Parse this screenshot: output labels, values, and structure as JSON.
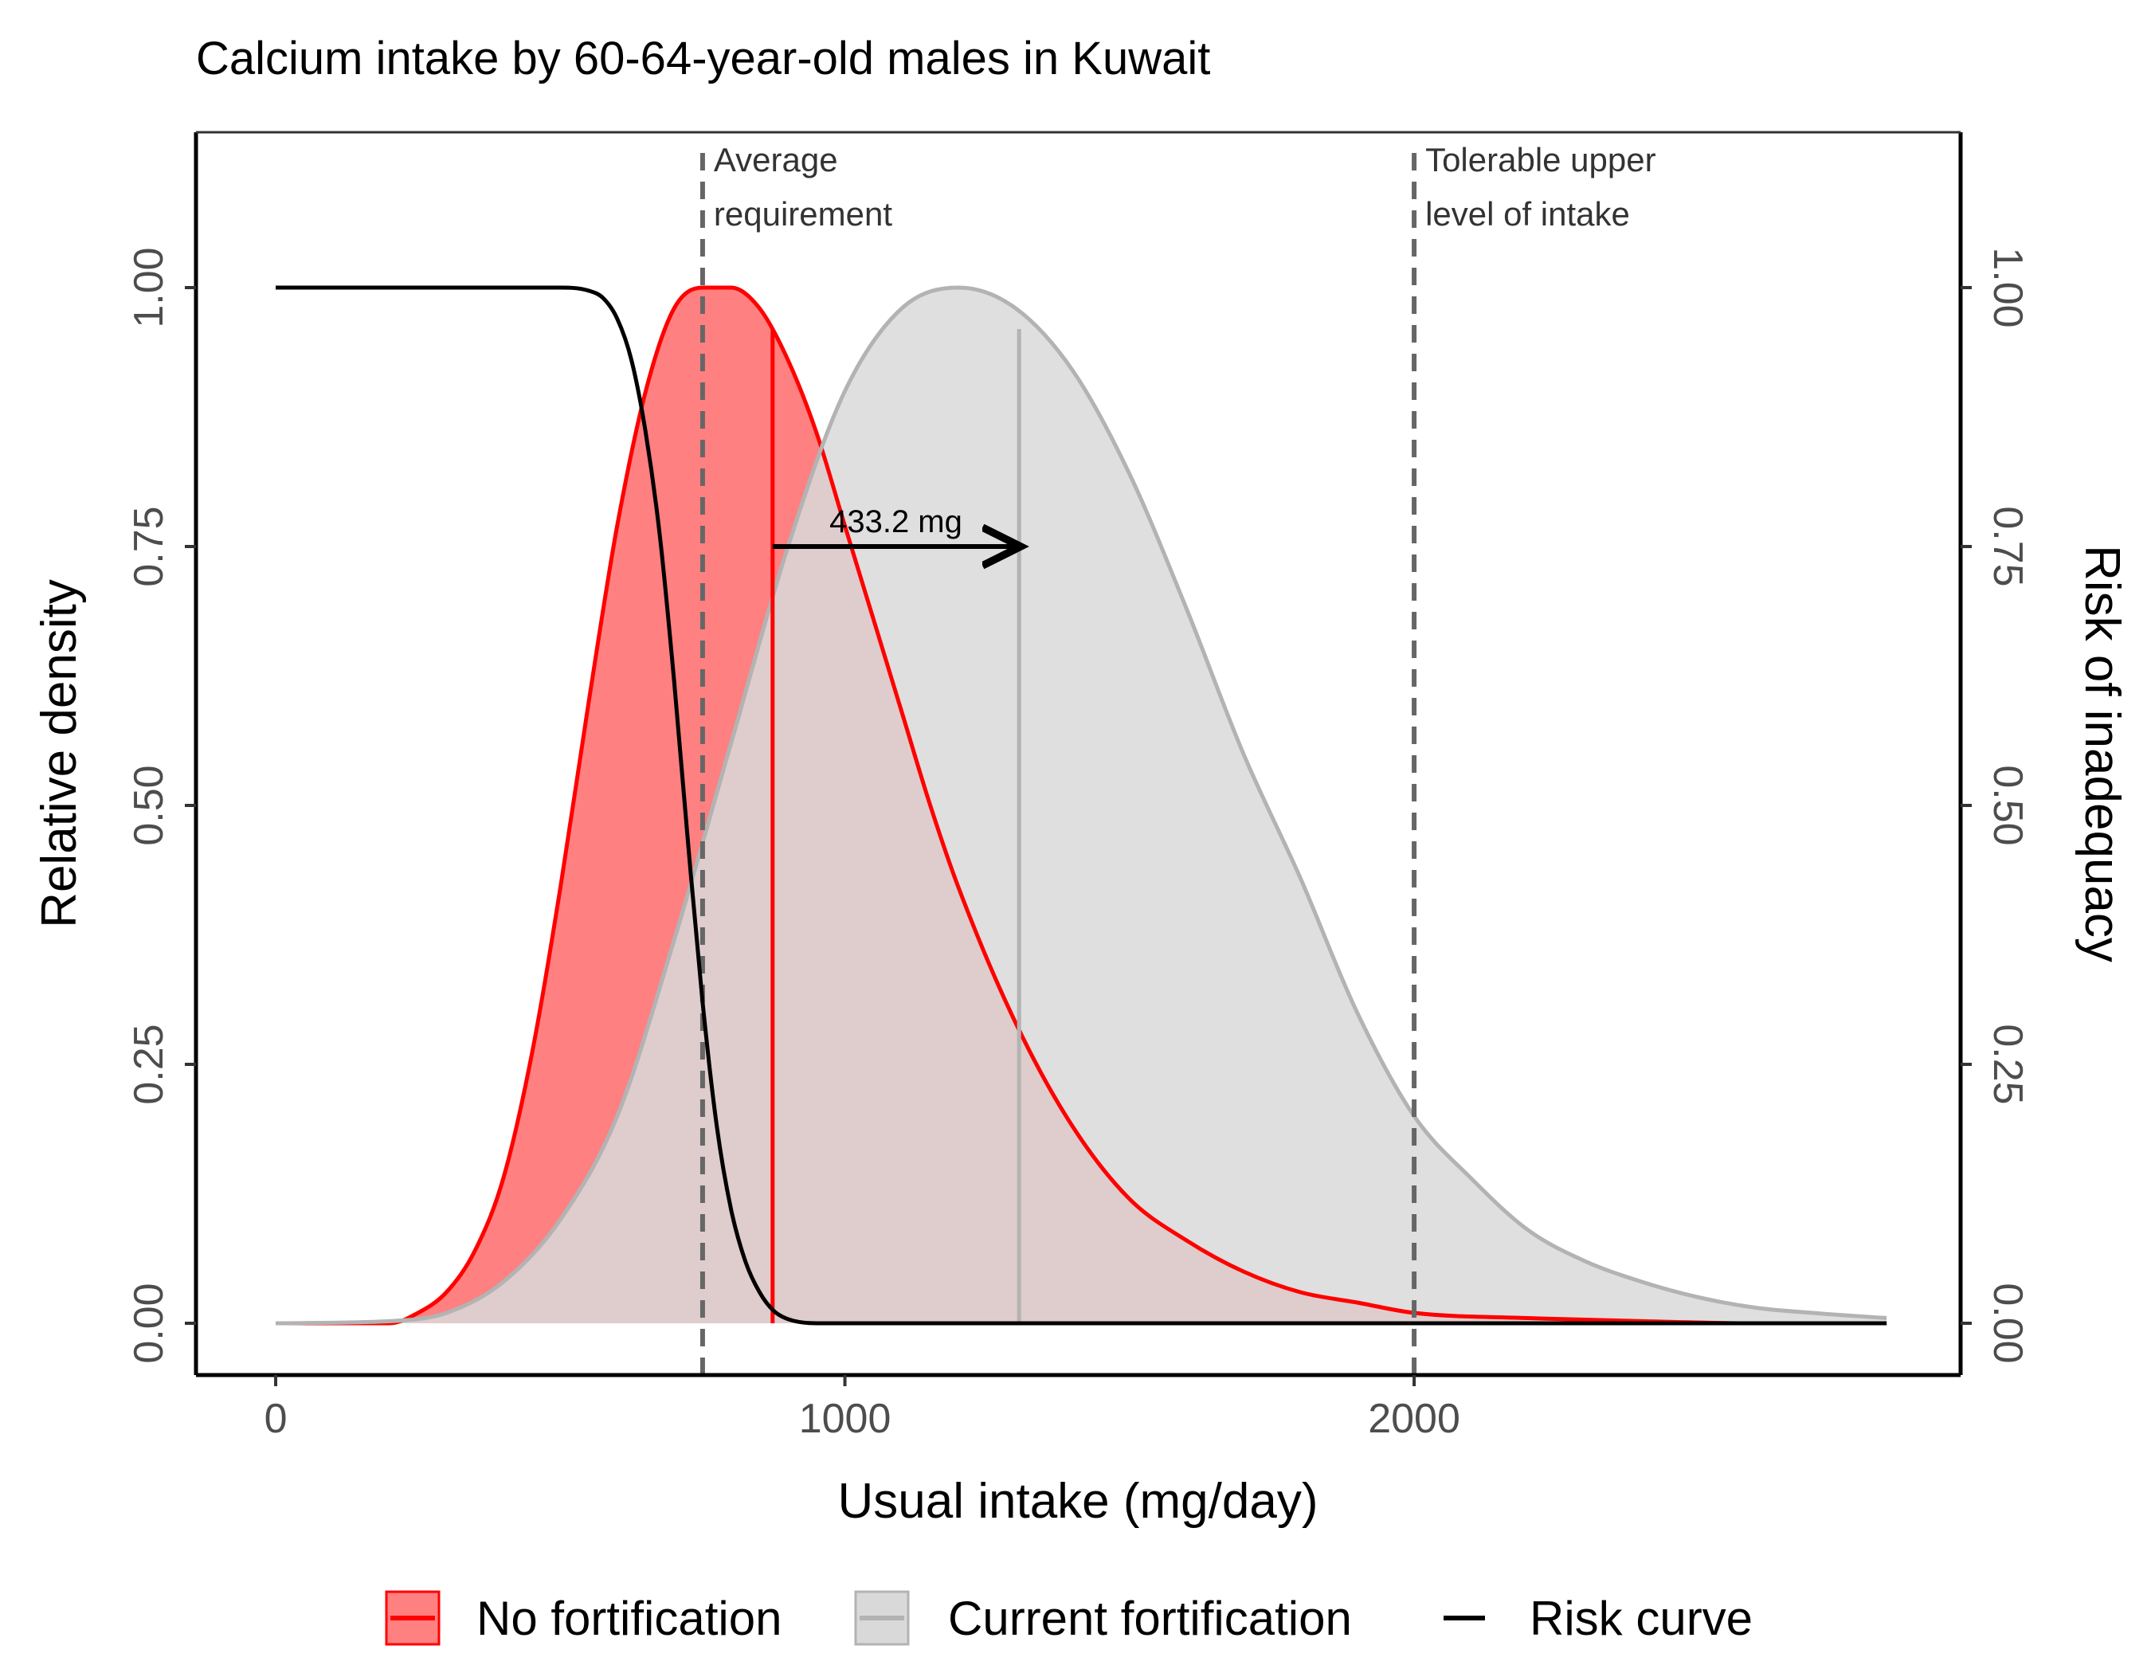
{
  "chart_data": {
    "type": "area",
    "title": "Calcium intake by 60-64-year-old males in Kuwait",
    "xlabel": "Usual intake (mg/day)",
    "ylabel": "Relative density",
    "y2label": "Risk of inadequacy",
    "xlim": [
      -140,
      2960
    ],
    "ylim": [
      -0.05,
      1.15
    ],
    "x_ticks": [
      0,
      1000,
      2000
    ],
    "x_tick_labels": [
      "0",
      "1000",
      "2000"
    ],
    "y_ticks": [
      0,
      0.25,
      0.5,
      0.75,
      1.0
    ],
    "y_tick_labels": [
      "0.00",
      "0.25",
      "0.50",
      "0.75",
      "1.00"
    ],
    "y2_ticks": [
      0,
      0.25,
      0.5,
      0.75,
      1.0
    ],
    "y2_tick_labels": [
      "0.00",
      "0.25",
      "0.50",
      "0.75",
      "1.00"
    ],
    "grid": false,
    "legend_position": "bottom",
    "colors": {
      "no_fortification_line": "#ff0000",
      "no_fortification_fill": "#ff8080",
      "current_fortification_line": "#b3b3b3",
      "current_fortification_fill": "#d9d9d9",
      "risk_curve": "#000000",
      "reference_line": "#666666"
    },
    "series": [
      {
        "name": "No fortification",
        "x": [
          0,
          200,
          250,
          300,
          350,
          400,
          450,
          500,
          550,
          600,
          650,
          700,
          750,
          800,
          850,
          900,
          950,
          1000,
          1050,
          1100,
          1150,
          1200,
          1300,
          1400,
          1500,
          1600,
          1700,
          1800,
          1900,
          2000,
          2200,
          2400,
          2600,
          2830
        ],
        "values": [
          0.0,
          0.0,
          0.01,
          0.03,
          0.07,
          0.14,
          0.26,
          0.42,
          0.6,
          0.77,
          0.9,
          0.98,
          1.0,
          1.0,
          0.98,
          0.93,
          0.86,
          0.77,
          0.68,
          0.59,
          0.5,
          0.42,
          0.29,
          0.19,
          0.12,
          0.08,
          0.05,
          0.03,
          0.02,
          0.01,
          0.005,
          0.002,
          0.0,
          0.0
        ],
        "mean_line_x": 873,
        "mean_line_y": 0.96
      },
      {
        "name": "Current fortification",
        "x": [
          0,
          200,
          300,
          400,
          500,
          600,
          700,
          800,
          900,
          1000,
          1100,
          1200,
          1300,
          1400,
          1500,
          1600,
          1700,
          1800,
          1900,
          2000,
          2100,
          2200,
          2300,
          2400,
          2500,
          2600,
          2700,
          2830
        ],
        "values": [
          0.0,
          0.002,
          0.01,
          0.04,
          0.1,
          0.2,
          0.37,
          0.56,
          0.75,
          0.9,
          0.98,
          1.0,
          0.98,
          0.92,
          0.82,
          0.69,
          0.55,
          0.43,
          0.3,
          0.2,
          0.14,
          0.09,
          0.06,
          0.04,
          0.025,
          0.015,
          0.01,
          0.005
        ],
        "mean_line_x": 1306,
        "mean_line_y": 0.96
      },
      {
        "name": "Risk curve",
        "x": [
          0,
          500,
          550,
          575,
          600,
          625,
          650,
          675,
          700,
          725,
          750,
          775,
          800,
          825,
          850,
          875,
          900,
          950,
          2830
        ],
        "values": [
          1.0,
          1.0,
          0.997,
          0.99,
          0.97,
          0.93,
          0.86,
          0.76,
          0.62,
          0.46,
          0.31,
          0.19,
          0.11,
          0.06,
          0.03,
          0.012,
          0.004,
          0.0,
          0.0
        ]
      }
    ],
    "reference_lines": [
      {
        "x": 750,
        "label_lines": [
          "Average",
          "requirement"
        ]
      },
      {
        "x": 2000,
        "label_lines": [
          "Tolerable upper",
          "level of intake"
        ]
      }
    ],
    "annotation": {
      "label": "433.2 mg",
      "x_start": 873,
      "x_end": 1306,
      "y": 0.75
    }
  }
}
